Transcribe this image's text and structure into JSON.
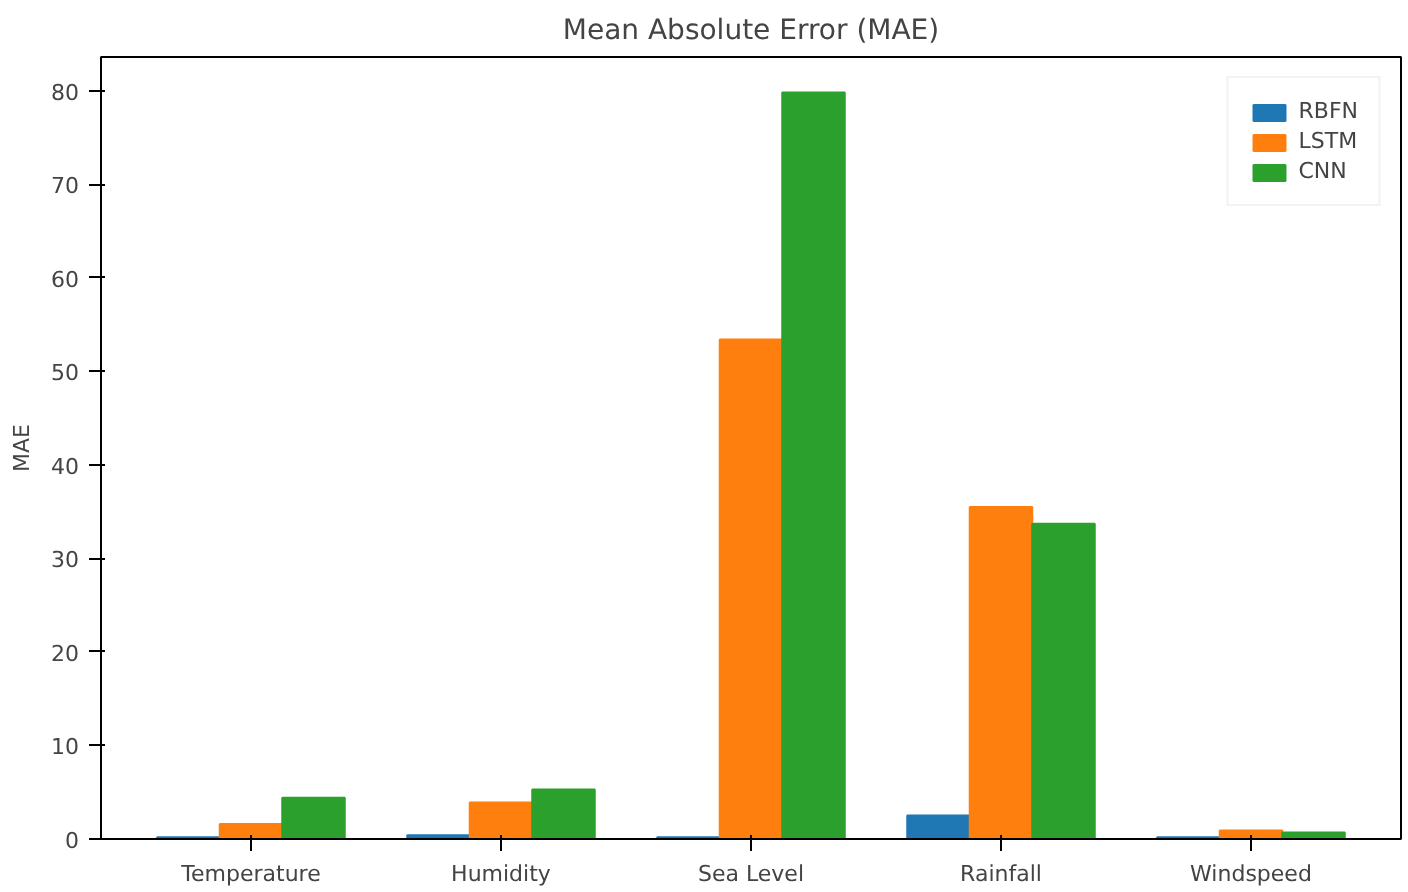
{
  "chart_data": {
    "type": "bar",
    "title": "Mean Absolute Error (MAE)",
    "ylabel": "MAE",
    "categories": [
      "Temperature",
      "Humidity",
      "Sea Level",
      "Rainfall",
      "Windspeed"
    ],
    "series": [
      {
        "name": "RBFN",
        "color": "#1f77b4",
        "values": [
          0.2,
          0.4,
          0.2,
          2.5,
          0.2
        ]
      },
      {
        "name": "LSTM",
        "color": "#ff7f0e",
        "values": [
          1.6,
          3.9,
          53.4,
          35.5,
          0.9
        ]
      },
      {
        "name": "CNN",
        "color": "#2ca02c",
        "values": [
          4.4,
          5.3,
          79.8,
          33.7,
          0.7
        ]
      }
    ],
    "ylim": [
      0,
      83.6
    ],
    "yticks": [
      0,
      10,
      20,
      30,
      40,
      50,
      60,
      70,
      80
    ],
    "grid": false,
    "legend": "top right"
  }
}
